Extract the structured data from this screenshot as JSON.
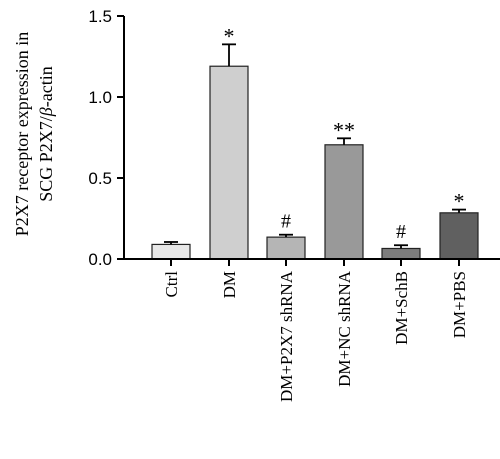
{
  "chart_data": {
    "type": "bar",
    "categories": [
      "Ctrl",
      "DM",
      "DM+P2X7 shRNA",
      "DM+NC shRNA",
      "DM+SchB",
      "DM+PBS"
    ],
    "values": [
      0.09,
      1.19,
      0.135,
      0.705,
      0.065,
      0.285
    ],
    "errors": [
      0.015,
      0.135,
      0.015,
      0.04,
      0.02,
      0.02
    ],
    "annotations": [
      "",
      "*",
      "#",
      "**",
      "#",
      "*"
    ],
    "bar_colors": [
      "#e8e8e8",
      "#cfcfcf",
      "#b5b5b5",
      "#999999",
      "#7d7d7d",
      "#606060"
    ],
    "ylabel_line1": "P2X7 receptor expression in",
    "ylabel_line2_prefix": "SCG P2X7/",
    "ylabel_line2_greek": "β",
    "ylabel_line2_suffix": "-actin",
    "ylim": [
      0,
      1.5
    ],
    "yticks": [
      "0.0",
      "0.5",
      "1.0",
      "1.5"
    ],
    "ytick_values": [
      0,
      0.5,
      1.0,
      1.5
    ],
    "grid": false
  }
}
